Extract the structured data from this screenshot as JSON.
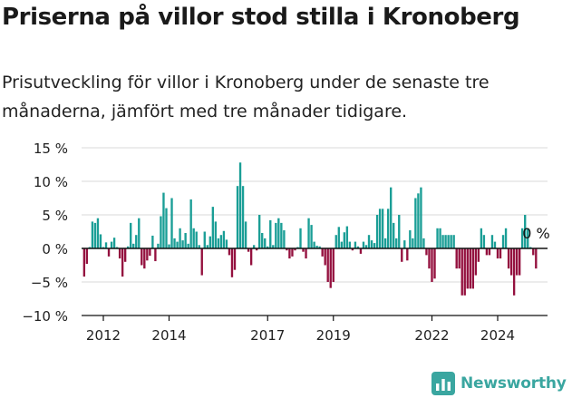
{
  "title": "Priserna på villor stod stilla i Kronoberg",
  "subtitle": "Prisutveckling för villor i Kronoberg under de senaste tre månaderna, jämfört med tre månader tidigare.",
  "brand": {
    "name": "Newsworthy",
    "icon": "newsworthy-chart-logo-icon"
  },
  "colors": {
    "positive": "#1a9e96",
    "negative": "#94113f",
    "grid": "#d9d9d9",
    "axis": "#111111"
  },
  "chart_data": {
    "type": "bar",
    "start": "2011-06",
    "frequency": "monthly",
    "ylim": [
      -10,
      15
    ],
    "yticks": [
      -10,
      -5,
      0,
      5,
      10,
      15
    ],
    "ytick_labels": [
      "−10 %",
      "−5 %",
      "0 %",
      "5 %",
      "10 %",
      "15 %"
    ],
    "xtick_labels": [
      "2012",
      "2014",
      "2017",
      "2019",
      "2022",
      "2024"
    ],
    "xtick_dates": [
      "2012-01",
      "2014-01",
      "2017-01",
      "2019-01",
      "2022-01",
      "2024-01"
    ],
    "annotation": "0 %",
    "grid": true,
    "values": [
      -4.2,
      -2.3,
      0.2,
      4.0,
      3.8,
      4.5,
      2.1,
      0.2,
      0.9,
      -1.2,
      1.0,
      1.6,
      0.2,
      -1.5,
      -4.2,
      -2.0,
      0.3,
      3.8,
      0.7,
      2.0,
      4.5,
      -2.5,
      -3.0,
      -1.8,
      -1.1,
      1.9,
      -1.9,
      0.7,
      4.8,
      8.3,
      6.0,
      0.6,
      7.5,
      1.5,
      1.0,
      3.0,
      1.2,
      2.3,
      0.7,
      7.3,
      3.0,
      2.5,
      0.5,
      -4.0,
      2.5,
      0.5,
      1.8,
      6.2,
      4.0,
      1.5,
      2.0,
      2.6,
      1.3,
      -1.0,
      -4.3,
      -3.2,
      9.3,
      12.8,
      9.3,
      4.0,
      -0.5,
      -2.5,
      0.5,
      -0.3,
      5.0,
      2.3,
      1.5,
      0.3,
      4.2,
      0.5,
      3.8,
      4.5,
      3.8,
      2.7,
      -0.3,
      -1.5,
      -1.2,
      -0.3,
      0.2,
      3.0,
      -0.5,
      -1.5,
      4.5,
      3.5,
      1.0,
      0.4,
      0.3,
      -1.2,
      -2.5,
      -5.0,
      -5.9,
      -5.0,
      2.0,
      3.2,
      1.0,
      2.4,
      3.3,
      1.0,
      -0.3,
      1.0,
      0.3,
      -0.8,
      1.0,
      0.5,
      2.0,
      1.2,
      0.8,
      5.0,
      5.9,
      5.9,
      1.5,
      5.9,
      9.1,
      3.8,
      1.5,
      5.0,
      -2.0,
      1.2,
      -1.8,
      2.7,
      1.5,
      7.5,
      8.2,
      9.1,
      1.5,
      -1.0,
      -3.0,
      -5.0,
      -4.5,
      3.0,
      3.0,
      2.0,
      2.0,
      2.0,
      2.0,
      2.0,
      -3.0,
      -3.0,
      -7.0,
      -7.0,
      -6.0,
      -6.0,
      -6.0,
      -4.0,
      -2.0,
      3.0,
      2.0,
      -1.0,
      -1.0,
      2.0,
      1.0,
      -1.5,
      -1.5,
      2.0,
      3.0,
      -3.0,
      -4.0,
      -7.0,
      -4.0,
      -4.0,
      3.0,
      5.0,
      3.0,
      0.2,
      -1.0,
      -3.0
    ]
  }
}
